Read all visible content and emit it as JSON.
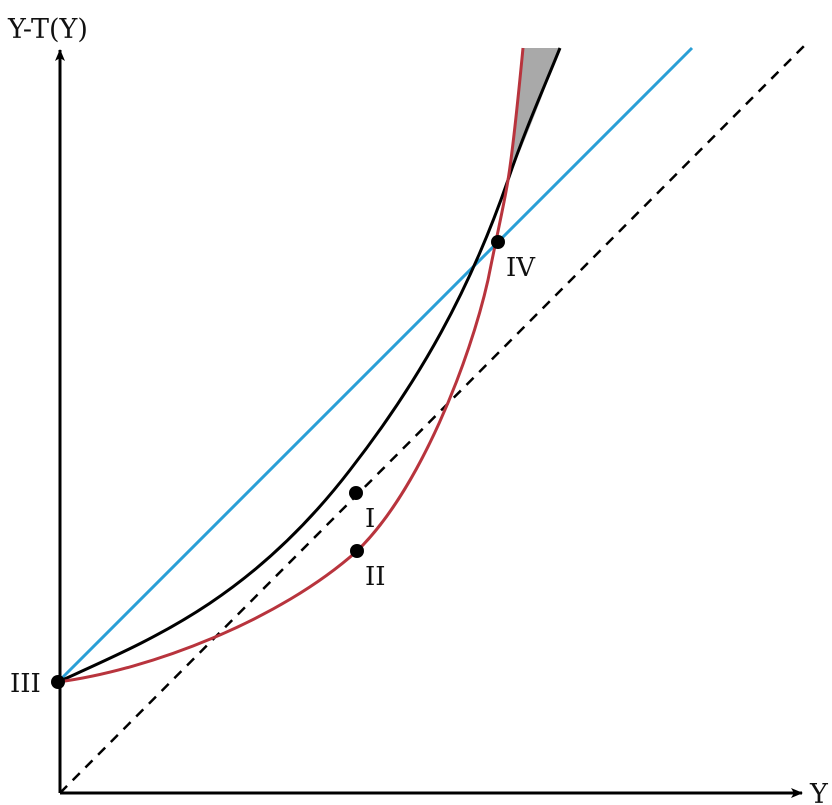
{
  "axes": {
    "y_label": "Y-T(Y)",
    "x_label": "Y"
  },
  "points": {
    "p1": "I",
    "p2": "II",
    "p3": "III",
    "p4": "IV"
  },
  "colors": {
    "axes": "#000000",
    "black_curve": "#000000",
    "red_curve": "#b8343d",
    "blue_line": "#2a9fd6",
    "dashed_line": "#000000",
    "shaded_region": "#a9a9a9",
    "points": "#000000"
  }
}
